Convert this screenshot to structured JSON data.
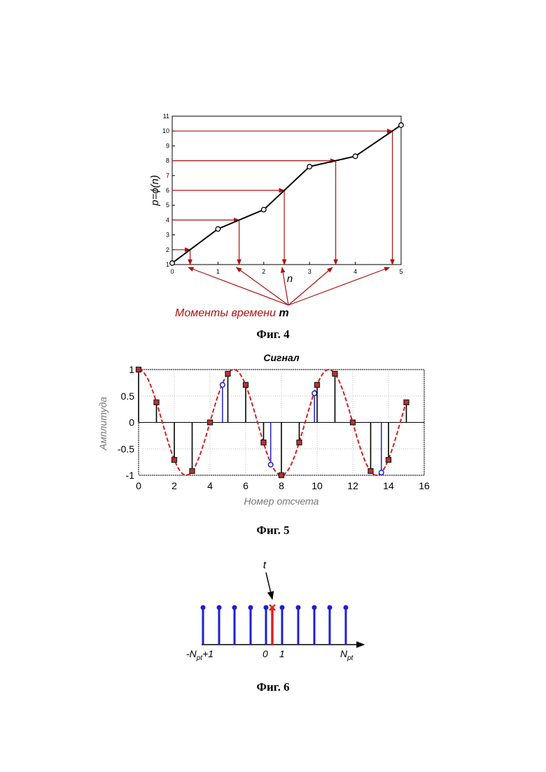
{
  "fig4": {
    "caption": "Фиг. 4",
    "ylabel": "p=ϕ(n)",
    "xlabel": "n",
    "annotation_text": "Моменты времени ",
    "annotation_var": "m",
    "x_ticks": [
      "0",
      "1",
      "2",
      "3",
      "4",
      "5"
    ],
    "y_ticks": [
      "1",
      "2",
      "3",
      "4",
      "5",
      "6",
      "7",
      "8",
      "9",
      "10",
      "11"
    ],
    "chart_data": {
      "type": "line",
      "x": [
        0,
        1,
        2,
        3,
        4,
        5
      ],
      "y": [
        1.1,
        3.4,
        4.7,
        7.6,
        8.3,
        10.4
      ],
      "xlim": [
        0,
        5
      ],
      "ylim": [
        1,
        11
      ],
      "levels": [
        2,
        4,
        6,
        8,
        10
      ],
      "moments": [
        0.35,
        1.4,
        2.4,
        3.5,
        4.75
      ]
    }
  },
  "fig5": {
    "caption": "Фиг. 5",
    "title": "Сигнал",
    "xlabel": "Номер отсчета",
    "ylabel": "Амплитуда",
    "x_ticks": [
      "0",
      "2",
      "4",
      "6",
      "8",
      "10",
      "12",
      "14",
      "16"
    ],
    "y_ticks": [
      "1",
      "0.5",
      "0",
      "-0.5",
      "-1"
    ],
    "chart_data": {
      "type": "scatter",
      "xlim": [
        0,
        16
      ],
      "ylim": [
        -1,
        1
      ],
      "samples_x": [
        0,
        1,
        2,
        3,
        4,
        5,
        6,
        7,
        8,
        9,
        10,
        11,
        12,
        13,
        14,
        15
      ],
      "samples_y": [
        1.0,
        0.38,
        -0.71,
        -0.92,
        0.0,
        0.92,
        0.71,
        -0.38,
        -1.0,
        -0.38,
        0.71,
        0.92,
        0.0,
        -0.92,
        -0.71,
        0.38
      ],
      "interp_x": [
        4.7,
        7.4,
        9.85,
        13.6
      ],
      "interp_y": [
        0.71,
        -0.8,
        0.55,
        -0.95
      ],
      "curve_period": 5.33
    }
  },
  "fig6": {
    "caption": "Фиг. 6",
    "t_label": "t",
    "left_label": "-N",
    "left_sub": "pt",
    "left_suffix": "+1",
    "zero_label": "0",
    "one_label": "1",
    "right_label": "N",
    "right_sub": "pt",
    "colors": {
      "stems": "#1f1fd0",
      "marker": "#e02020"
    }
  }
}
